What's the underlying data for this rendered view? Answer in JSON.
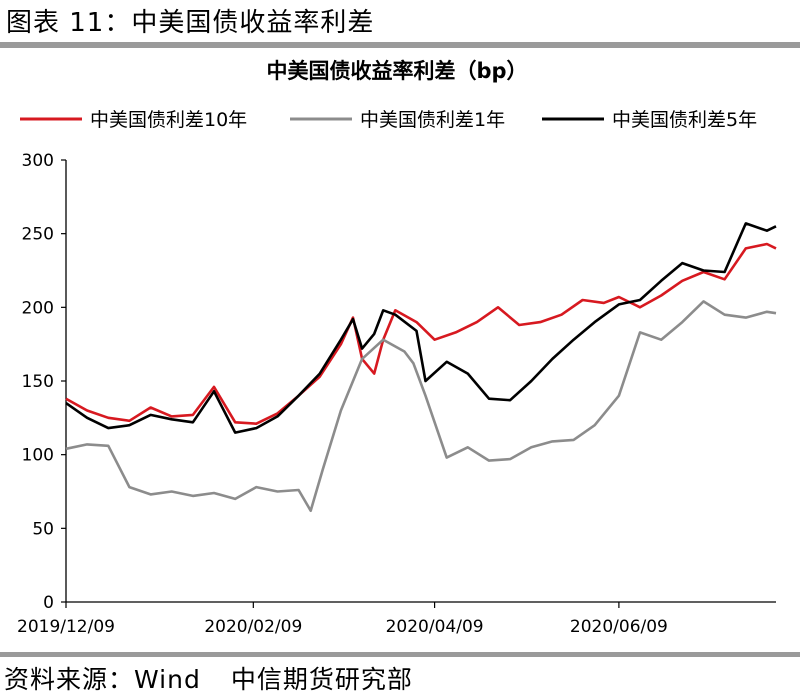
{
  "figure": {
    "caption": "图表 11：中美国债收益率利差",
    "source_prefix": "资料来源：Wind",
    "source_org": "中信期货研究部"
  },
  "chart_data": {
    "type": "line",
    "title": "中美国债收益率利差（bp）",
    "xlabel": "",
    "ylabel": "",
    "ylim": [
      0,
      300
    ],
    "yticks": [
      0,
      50,
      100,
      150,
      200,
      250,
      300
    ],
    "x_tick_labels": [
      "2019/12/09",
      "2020/02/09",
      "2020/04/09",
      "2020/06/09"
    ],
    "x_range": [
      "2019-12-09",
      "2020-07-31"
    ],
    "grid": false,
    "legend_position": "top",
    "colors": {
      "series_10y": "#d71920",
      "series_1y": "#8c8c8c",
      "series_5y": "#000000"
    },
    "series": [
      {
        "name": "中美国债利差10年",
        "x": [
          "2019-12-09",
          "2019-12-16",
          "2019-12-23",
          "2019-12-30",
          "2020-01-06",
          "2020-01-13",
          "2020-01-20",
          "2020-01-27",
          "2020-02-03",
          "2020-02-10",
          "2020-02-17",
          "2020-02-24",
          "2020-03-02",
          "2020-03-09",
          "2020-03-13",
          "2020-03-16",
          "2020-03-20",
          "2020-03-23",
          "2020-03-27",
          "2020-04-03",
          "2020-04-09",
          "2020-04-16",
          "2020-04-23",
          "2020-04-30",
          "2020-05-07",
          "2020-05-14",
          "2020-05-21",
          "2020-05-28",
          "2020-06-04",
          "2020-06-09",
          "2020-06-16",
          "2020-06-23",
          "2020-06-30",
          "2020-07-07",
          "2020-07-14",
          "2020-07-21",
          "2020-07-28",
          "2020-07-31"
        ],
        "y": [
          138,
          130,
          125,
          123,
          132,
          126,
          127,
          146,
          122,
          121,
          128,
          140,
          153,
          175,
          193,
          165,
          155,
          178,
          198,
          190,
          178,
          183,
          190,
          200,
          188,
          190,
          195,
          205,
          203,
          207,
          200,
          208,
          218,
          224,
          219,
          240,
          243,
          240
        ]
      },
      {
        "name": "中美国债利差1年",
        "x": [
          "2019-12-09",
          "2019-12-16",
          "2019-12-23",
          "2019-12-30",
          "2020-01-06",
          "2020-01-13",
          "2020-01-20",
          "2020-01-27",
          "2020-02-03",
          "2020-02-10",
          "2020-02-17",
          "2020-02-24",
          "2020-02-28",
          "2020-03-03",
          "2020-03-09",
          "2020-03-16",
          "2020-03-23",
          "2020-03-30",
          "2020-04-02",
          "2020-04-06",
          "2020-04-13",
          "2020-04-20",
          "2020-04-27",
          "2020-05-04",
          "2020-05-11",
          "2020-05-18",
          "2020-05-25",
          "2020-06-01",
          "2020-06-09",
          "2020-06-16",
          "2020-06-23",
          "2020-06-30",
          "2020-07-07",
          "2020-07-14",
          "2020-07-21",
          "2020-07-28",
          "2020-07-31"
        ],
        "y": [
          104,
          107,
          106,
          78,
          73,
          75,
          72,
          74,
          70,
          78,
          75,
          76,
          62,
          90,
          130,
          165,
          178,
          170,
          162,
          140,
          98,
          105,
          96,
          97,
          105,
          109,
          110,
          120,
          140,
          183,
          178,
          190,
          204,
          195,
          193,
          197,
          196
        ]
      },
      {
        "name": "中美国债利差5年",
        "x": [
          "2019-12-09",
          "2019-12-16",
          "2019-12-23",
          "2019-12-30",
          "2020-01-06",
          "2020-01-13",
          "2020-01-20",
          "2020-01-27",
          "2020-02-03",
          "2020-02-10",
          "2020-02-17",
          "2020-02-24",
          "2020-03-02",
          "2020-03-09",
          "2020-03-13",
          "2020-03-16",
          "2020-03-20",
          "2020-03-23",
          "2020-03-27",
          "2020-04-03",
          "2020-04-06",
          "2020-04-13",
          "2020-04-20",
          "2020-04-27",
          "2020-05-04",
          "2020-05-11",
          "2020-05-18",
          "2020-05-25",
          "2020-06-01",
          "2020-06-09",
          "2020-06-16",
          "2020-06-23",
          "2020-06-30",
          "2020-07-07",
          "2020-07-14",
          "2020-07-21",
          "2020-07-28",
          "2020-07-31"
        ],
        "y": [
          135,
          125,
          118,
          120,
          127,
          124,
          122,
          143,
          115,
          118,
          126,
          140,
          155,
          178,
          192,
          172,
          182,
          198,
          195,
          184,
          150,
          163,
          155,
          138,
          137,
          150,
          165,
          178,
          190,
          202,
          205,
          218,
          230,
          225,
          224,
          257,
          252,
          255
        ]
      }
    ]
  }
}
